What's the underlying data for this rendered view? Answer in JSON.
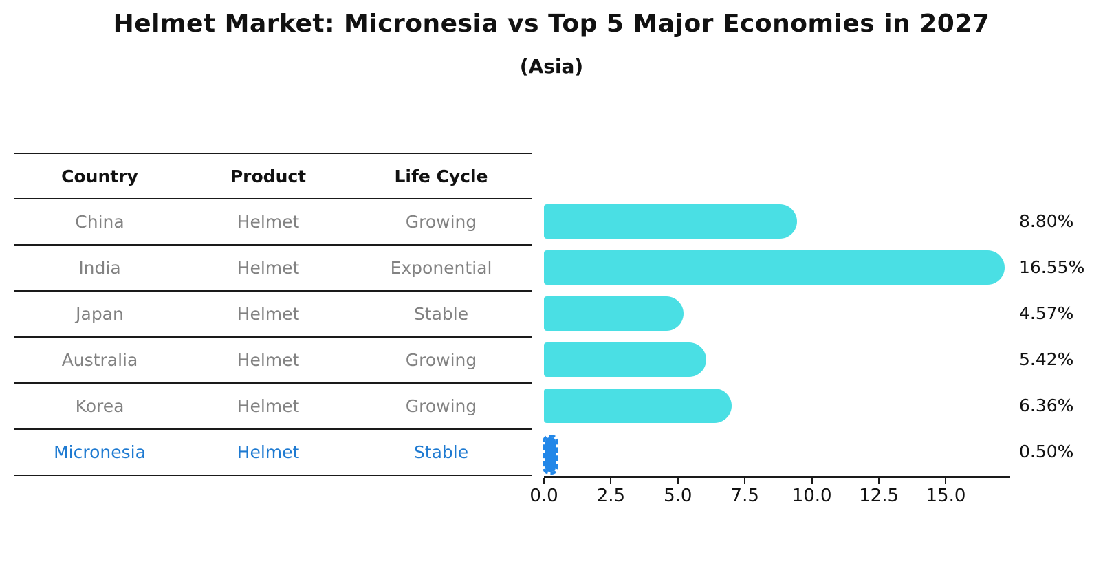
{
  "title": "Helmet Market: Micronesia vs Top 5 Major Economies in 2027",
  "subtitle": "(Asia)",
  "table": {
    "headers": [
      "Country",
      "Product",
      "Life Cycle"
    ],
    "rows": [
      {
        "country": "China",
        "product": "Helmet",
        "life_cycle": "Growing"
      },
      {
        "country": "India",
        "product": "Helmet",
        "life_cycle": "Exponential"
      },
      {
        "country": "Japan",
        "product": "Helmet",
        "life_cycle": "Stable"
      },
      {
        "country": "Australia",
        "product": "Helmet",
        "life_cycle": "Growing"
      },
      {
        "country": "Korea",
        "product": "Helmet",
        "life_cycle": "Growing"
      },
      {
        "country": "Micronesia",
        "product": "Helmet",
        "life_cycle": "Stable"
      }
    ],
    "highlight_row": "Micronesia"
  },
  "chart_data": {
    "type": "bar",
    "orientation": "horizontal",
    "title": "Helmet Market: Micronesia vs Top 5 Major Economies in 2027",
    "subtitle": "(Asia)",
    "categories": [
      "China",
      "India",
      "Japan",
      "Australia",
      "Korea",
      "Micronesia"
    ],
    "values": [
      8.8,
      16.55,
      4.57,
      5.42,
      6.36,
      0.5
    ],
    "value_labels": [
      "8.80%",
      "16.55%",
      "4.57%",
      "5.42%",
      "6.36%",
      "0.50%"
    ],
    "x_ticks": [
      0.0,
      2.5,
      5.0,
      7.5,
      10.0,
      12.5,
      15.0
    ],
    "x_tick_labels": [
      "0.0",
      "2.5",
      "5.0",
      "7.5",
      "10.0",
      "12.5",
      "15.0"
    ],
    "xlim": [
      0,
      17.4
    ],
    "grid": false,
    "legend": false,
    "bar_color": "#4ADFE4",
    "highlight_bar_color": "#2287E8",
    "highlight_index": 5
  },
  "colors": {
    "title_text": "#111111",
    "table_text": "#828282",
    "table_header_text": "#111111",
    "highlight_text": "#1E7AD1",
    "line": "#1a1a1a",
    "value_label_text": "#111111"
  }
}
